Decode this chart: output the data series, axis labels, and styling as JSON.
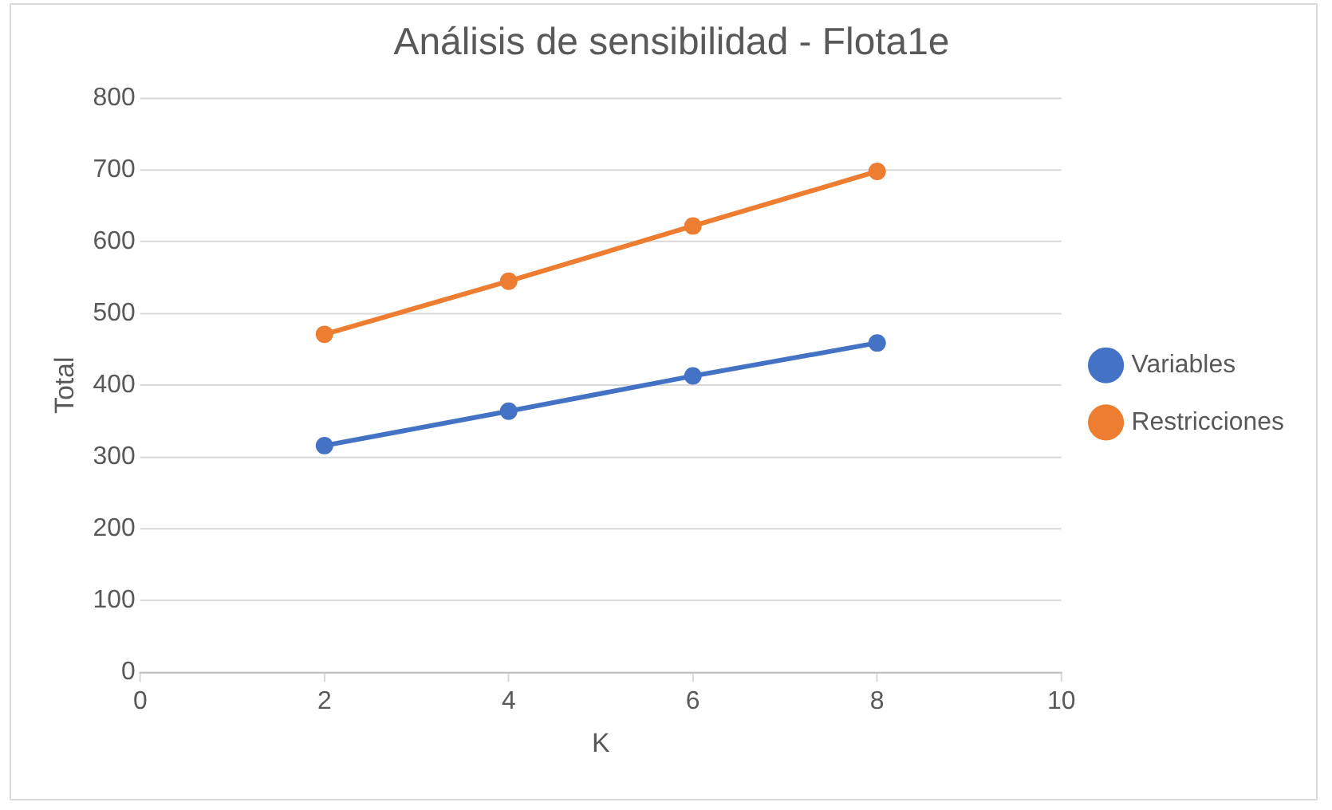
{
  "chart_data": {
    "type": "line",
    "title": "Análisis de sensibilidad - Flota1e",
    "xlabel": "K",
    "ylabel": "Total",
    "x": [
      2,
      4,
      6,
      8
    ],
    "series": [
      {
        "name": "Variables",
        "color": "#4472c4",
        "values": [
          316,
          364,
          413,
          459
        ]
      },
      {
        "name": "Restricciones",
        "color": "#ed7d31",
        "values": [
          471,
          545,
          622,
          698
        ]
      }
    ],
    "xlim": [
      0,
      10
    ],
    "xticks": [
      0,
      2,
      4,
      6,
      8,
      10
    ],
    "ylim": [
      0,
      800
    ],
    "yticks": [
      0,
      100,
      200,
      300,
      400,
      500,
      600,
      700,
      800
    ],
    "grid": "y",
    "legend": "right",
    "marker": "circle",
    "line_style": "solid"
  }
}
